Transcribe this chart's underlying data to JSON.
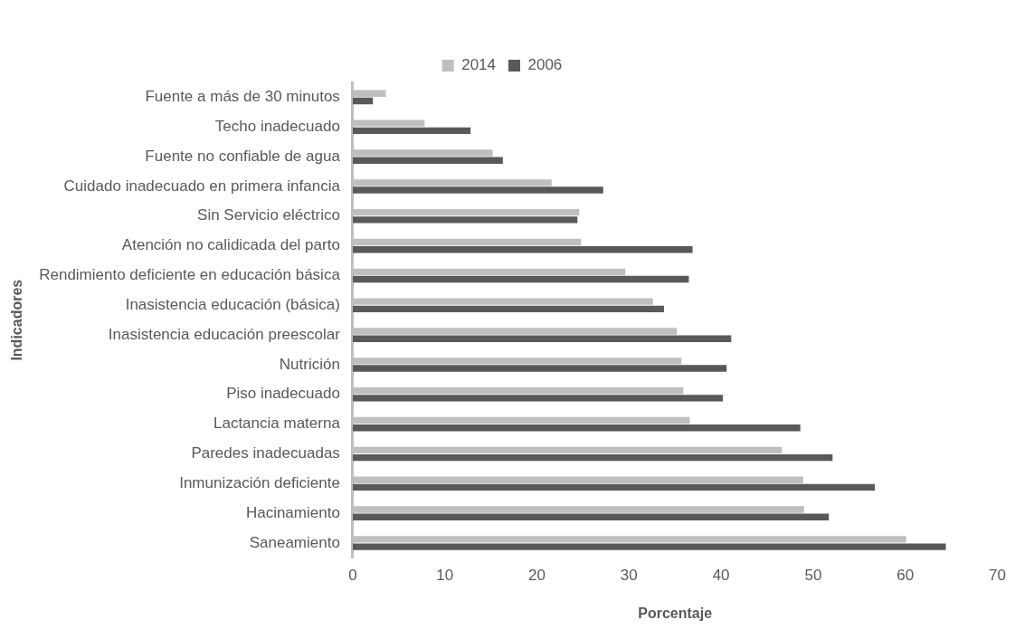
{
  "chart_data": {
    "type": "bar",
    "orientation": "horizontal",
    "xlabel": "Porcentaje",
    "ylabel": "Indicadores",
    "categories": [
      "Fuente a más de 30 minutos",
      "Techo inadecuado",
      "Fuente no confiable de agua",
      "Cuidado inadecuado en primera infancia",
      "Sin Servicio eléctrico",
      "Atención no calidicada del parto",
      "Rendimiento deficiente en educación básica",
      "Inasistencia educación (básica)",
      "Inasistencia educación preescolar",
      "Nutrición",
      "Piso inadecuado",
      "Lactancia materna",
      "Paredes inadecuadas",
      "Inmunización deficiente",
      "Hacinamiento",
      "Saneamiento"
    ],
    "series": [
      {
        "name": "2014",
        "color": "#bfbfbf",
        "values": [
          3.6,
          7.8,
          15.2,
          21.6,
          24.6,
          24.8,
          29.6,
          32.6,
          35.2,
          35.7,
          35.9,
          36.6,
          46.6,
          48.9,
          49.0,
          60.1
        ]
      },
      {
        "name": "2006",
        "color": "#595959",
        "values": [
          2.2,
          12.8,
          16.3,
          27.2,
          24.4,
          36.9,
          36.5,
          33.8,
          41.1,
          40.6,
          40.2,
          48.6,
          52.1,
          56.7,
          51.7,
          64.4
        ]
      }
    ],
    "xlim": [
      0,
      70
    ],
    "xticks": [
      0,
      10,
      20,
      30,
      40,
      50,
      60,
      70
    ],
    "grid": false,
    "legend": "top"
  }
}
